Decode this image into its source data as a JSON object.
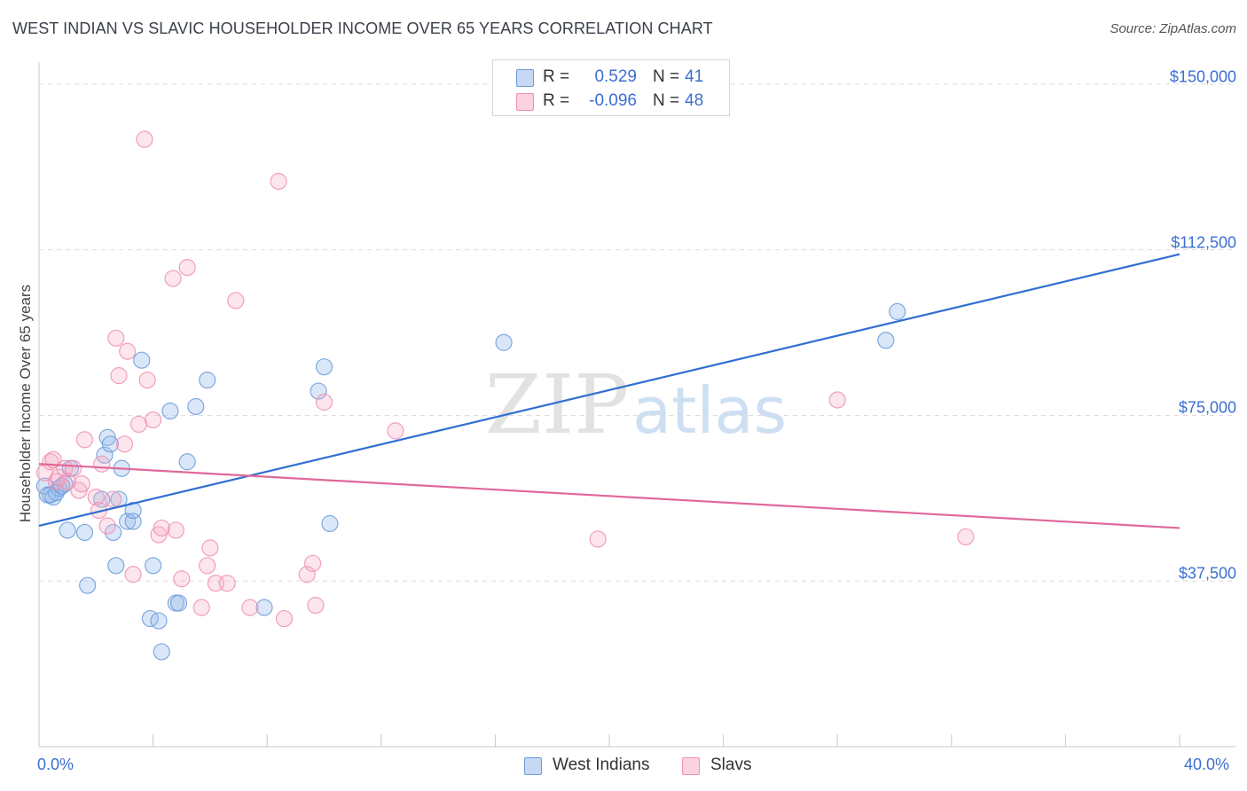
{
  "title": "WEST INDIAN VS SLAVIC HOUSEHOLDER INCOME OVER 65 YEARS CORRELATION CHART",
  "source": "Source: ZipAtlas.com",
  "watermark": {
    "zip": "ZIP",
    "atlas": "atlas"
  },
  "legend_top": [
    {
      "r_label": "R =",
      "r_value": "0.529",
      "n_label": "N =",
      "n_value": "41",
      "color": "#6b9bd9"
    },
    {
      "r_label": "R =",
      "r_value": "-0.096",
      "n_label": "N =",
      "n_value": "48",
      "color": "#f08fb0"
    }
  ],
  "legend_bottom": [
    {
      "label": "West Indians",
      "color": "#6b9bd9"
    },
    {
      "label": "Slavs",
      "color": "#f08fb0"
    }
  ],
  "chart_data": {
    "type": "scatter",
    "title": "WEST INDIAN VS SLAVIC HOUSEHOLDER INCOME OVER 65 YEARS CORRELATION CHART",
    "xlabel": "",
    "ylabel": "Householder Income Over 65 years",
    "xlim": [
      0,
      40
    ],
    "ylim": [
      0,
      155000
    ],
    "x_tick_labels": [
      "0.0%",
      "40.0%"
    ],
    "y_ticks": [
      {
        "value": 37500,
        "label": "$37,500"
      },
      {
        "value": 75000,
        "label": "$75,000"
      },
      {
        "value": 112500,
        "label": "$112,500"
      },
      {
        "value": 150000,
        "label": "$150,000"
      }
    ],
    "grid": true,
    "series": [
      {
        "name": "West Indians",
        "color": "#6b9bd9",
        "points": [
          [
            0.2,
            59000
          ],
          [
            0.3,
            57000
          ],
          [
            0.5,
            56500
          ],
          [
            0.6,
            57500
          ],
          [
            0.7,
            58500
          ],
          [
            0.9,
            59500
          ],
          [
            1.0,
            49000
          ],
          [
            1.1,
            63000
          ],
          [
            1.6,
            48500
          ],
          [
            1.7,
            36500
          ],
          [
            2.2,
            56000
          ],
          [
            2.3,
            66000
          ],
          [
            2.4,
            70000
          ],
          [
            2.5,
            68500
          ],
          [
            2.6,
            48500
          ],
          [
            2.7,
            41000
          ],
          [
            2.8,
            56000
          ],
          [
            2.9,
            63000
          ],
          [
            3.1,
            51000
          ],
          [
            3.3,
            51000
          ],
          [
            3.3,
            53500
          ],
          [
            3.6,
            87500
          ],
          [
            3.9,
            29000
          ],
          [
            4.0,
            41000
          ],
          [
            4.2,
            28500
          ],
          [
            4.3,
            21500
          ],
          [
            4.6,
            76000
          ],
          [
            4.8,
            32500
          ],
          [
            4.9,
            32500
          ],
          [
            5.2,
            64500
          ],
          [
            5.5,
            77000
          ],
          [
            5.9,
            83000
          ],
          [
            7.9,
            31500
          ],
          [
            9.8,
            80500
          ],
          [
            10.0,
            86000
          ],
          [
            10.2,
            50500
          ],
          [
            16.3,
            91500
          ],
          [
            29.7,
            92000
          ],
          [
            30.1,
            98500
          ],
          [
            0.4,
            57000
          ],
          [
            0.8,
            59000
          ]
        ]
      },
      {
        "name": "Slavs",
        "color": "#f08fb0",
        "points": [
          [
            0.2,
            62000
          ],
          [
            0.4,
            64500
          ],
          [
            0.5,
            65000
          ],
          [
            0.6,
            60000
          ],
          [
            0.7,
            61000
          ],
          [
            0.9,
            63000
          ],
          [
            1.0,
            60000
          ],
          [
            1.2,
            63000
          ],
          [
            1.4,
            58000
          ],
          [
            1.5,
            59500
          ],
          [
            1.6,
            69500
          ],
          [
            2.0,
            56500
          ],
          [
            2.1,
            53500
          ],
          [
            2.2,
            64000
          ],
          [
            2.4,
            50000
          ],
          [
            2.6,
            56000
          ],
          [
            2.7,
            92500
          ],
          [
            2.8,
            84000
          ],
          [
            3.0,
            68500
          ],
          [
            3.1,
            89500
          ],
          [
            3.3,
            39000
          ],
          [
            3.5,
            73000
          ],
          [
            3.7,
            137500
          ],
          [
            3.8,
            83000
          ],
          [
            4.0,
            74000
          ],
          [
            4.2,
            48000
          ],
          [
            4.3,
            49500
          ],
          [
            4.7,
            106000
          ],
          [
            4.8,
            49000
          ],
          [
            5.0,
            38000
          ],
          [
            5.2,
            108500
          ],
          [
            5.7,
            31500
          ],
          [
            5.9,
            41000
          ],
          [
            6.0,
            45000
          ],
          [
            6.2,
            37000
          ],
          [
            6.6,
            37000
          ],
          [
            6.9,
            101000
          ],
          [
            7.4,
            31500
          ],
          [
            8.4,
            128000
          ],
          [
            8.6,
            29000
          ],
          [
            9.4,
            39000
          ],
          [
            9.6,
            41500
          ],
          [
            9.7,
            32000
          ],
          [
            10.0,
            78000
          ],
          [
            12.5,
            71500
          ],
          [
            19.6,
            47000
          ],
          [
            28.0,
            78500
          ],
          [
            32.5,
            47500
          ]
        ]
      }
    ],
    "trend_lines": [
      {
        "series": "West Indians",
        "x": [
          0,
          40
        ],
        "y": [
          50000,
          111500
        ]
      },
      {
        "series": "Slavs",
        "x": [
          0,
          40
        ],
        "y": [
          64000,
          49500
        ]
      }
    ]
  }
}
